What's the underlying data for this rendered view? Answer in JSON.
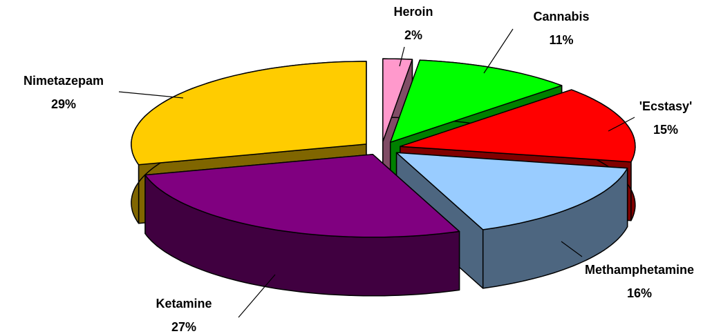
{
  "chart_data": {
    "type": "pie3d",
    "categories": [
      "Heroin",
      "Cannabis",
      "'Ecstasy'",
      "Methamphetamine",
      "Ketamine",
      "Nimetazepam"
    ],
    "values": [
      2,
      11,
      15,
      16,
      27,
      29
    ],
    "value_labels": [
      "2%",
      "11%",
      "15%",
      "16%",
      "27%",
      "29%"
    ],
    "colors": [
      "#ff99cc",
      "#00ff00",
      "#ff0000",
      "#99ccff",
      "#800080",
      "#ffcc00"
    ]
  }
}
